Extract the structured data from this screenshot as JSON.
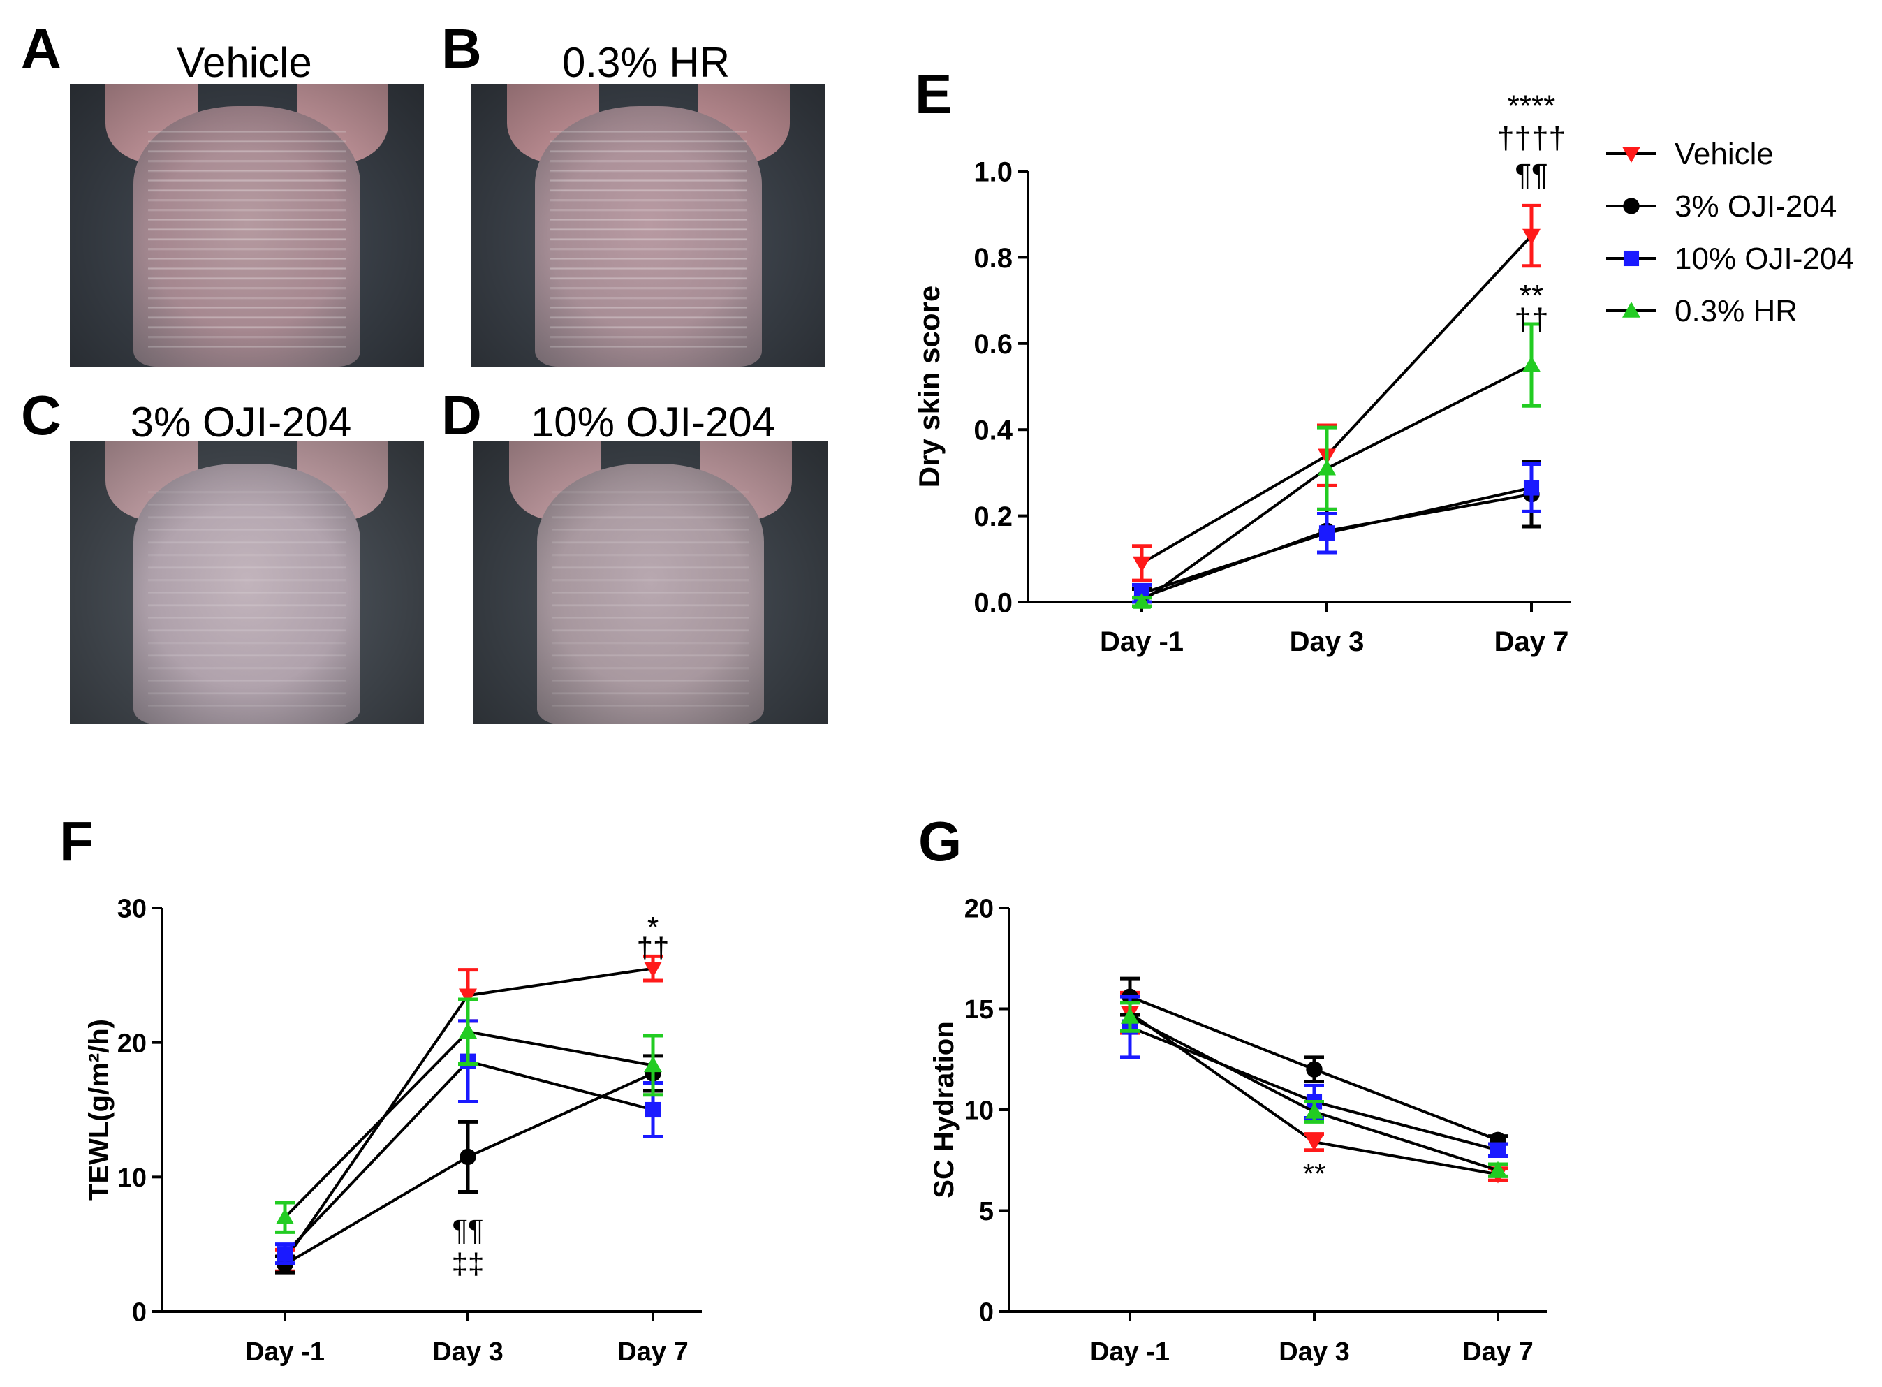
{
  "panels": {
    "A": {
      "letter": "A",
      "title": "Vehicle"
    },
    "B": {
      "letter": "B",
      "title": "0.3% HR"
    },
    "C": {
      "letter": "C",
      "title": "3% OJI-204"
    },
    "D": {
      "letter": "D",
      "title": "10% OJI-204"
    },
    "E": {
      "letter": "E"
    },
    "F": {
      "letter": "F"
    },
    "G": {
      "letter": "G"
    }
  },
  "colors": {
    "vehicle": "#ff1a1a",
    "oji3": "#000000",
    "oji10": "#1a1aff",
    "hr": "#22cc22"
  },
  "chart_data": [
    {
      "id": "E",
      "type": "line",
      "title": "",
      "xlabel": "",
      "ylabel": "Dry skin score",
      "categories": [
        "Day -1",
        "Day 3",
        "Day 7"
      ],
      "ylim": [
        0,
        1.0
      ],
      "yticks": [
        "0.0",
        "0.2",
        "0.4",
        "0.6",
        "0.8",
        "1.0"
      ],
      "legend_position": "top-right",
      "series": [
        {
          "key": "vehicle",
          "name": "Vehicle",
          "marker": "triangle-down",
          "values": [
            0.09,
            0.34,
            0.85
          ],
          "errors": [
            0.04,
            0.07,
            0.07
          ]
        },
        {
          "key": "oji3",
          "name": "3% OJI-204",
          "marker": "circle",
          "values": [
            0.01,
            0.165,
            0.25
          ],
          "errors": [
            0.02,
            0.05,
            0.075
          ]
        },
        {
          "key": "oji10",
          "name": "10% OJI-204",
          "marker": "square",
          "values": [
            0.02,
            0.16,
            0.265
          ],
          "errors": [
            0.02,
            0.045,
            0.055
          ]
        },
        {
          "key": "hr",
          "name": "0.3% HR",
          "marker": "triangle-up",
          "values": [
            0.0,
            0.31,
            0.55
          ],
          "errors": [
            0.01,
            0.095,
            0.095
          ]
        }
      ],
      "annotations": [
        {
          "category": "Day 7",
          "value": 1.15,
          "text": "****"
        },
        {
          "category": "Day 7",
          "value": 1.075,
          "text": "††††"
        },
        {
          "category": "Day 7",
          "value": 0.99,
          "text": "¶¶"
        },
        {
          "category": "Day 7",
          "value": 0.71,
          "text": "**"
        },
        {
          "category": "Day 7",
          "value": 0.655,
          "text": "††"
        }
      ]
    },
    {
      "id": "F",
      "type": "line",
      "title": "",
      "xlabel": "",
      "ylabel": "TEWL(g/m²/h)",
      "categories": [
        "Day -1",
        "Day 3",
        "Day 7"
      ],
      "ylim": [
        0,
        30
      ],
      "yticks": [
        "0",
        "10",
        "20",
        "30"
      ],
      "series": [
        {
          "key": "vehicle",
          "name": "Vehicle",
          "marker": "triangle-down",
          "values": [
            3.8,
            23.5,
            25.5
          ],
          "errors": [
            0.8,
            1.9,
            0.9
          ]
        },
        {
          "key": "oji3",
          "name": "3% OJI-204",
          "marker": "circle",
          "values": [
            3.5,
            11.5,
            17.7
          ],
          "errors": [
            0.6,
            2.6,
            1.3
          ]
        },
        {
          "key": "oji10",
          "name": "10% OJI-204",
          "marker": "square",
          "values": [
            4.3,
            18.6,
            15.0
          ],
          "errors": [
            0.7,
            3.0,
            2.0
          ]
        },
        {
          "key": "hr",
          "name": "0.3% HR",
          "marker": "triangle-up",
          "values": [
            7.0,
            20.8,
            18.3
          ],
          "errors": [
            1.1,
            2.4,
            2.2
          ]
        }
      ],
      "annotations": [
        {
          "category": "Day 7",
          "value": 28.5,
          "text": "*"
        },
        {
          "category": "Day 7",
          "value": 27.0,
          "text": "††"
        },
        {
          "category": "Day 3",
          "value": 6.0,
          "text": "¶¶"
        },
        {
          "category": "Day 3",
          "value": 3.5,
          "text": "‡‡"
        }
      ]
    },
    {
      "id": "G",
      "type": "line",
      "title": "",
      "xlabel": "",
      "ylabel": "SC Hydration",
      "categories": [
        "Day -1",
        "Day 3",
        "Day 7"
      ],
      "ylim": [
        0,
        20
      ],
      "yticks": [
        "0",
        "5",
        "10",
        "15",
        "20"
      ],
      "series": [
        {
          "key": "vehicle",
          "name": "Vehicle",
          "marker": "triangle-down",
          "values": [
            14.8,
            8.4,
            6.8
          ],
          "errors": [
            1.0,
            0.4,
            0.3
          ]
        },
        {
          "key": "oji3",
          "name": "3% OJI-204",
          "marker": "circle",
          "values": [
            15.6,
            12.0,
            8.5
          ],
          "errors": [
            0.9,
            0.6,
            0.2
          ]
        },
        {
          "key": "oji10",
          "name": "10% OJI-204",
          "marker": "square",
          "values": [
            14.1,
            10.4,
            8.0
          ],
          "errors": [
            1.5,
            0.8,
            0.3
          ]
        },
        {
          "key": "hr",
          "name": "0.3% HR",
          "marker": "triangle-up",
          "values": [
            14.6,
            9.9,
            7.0
          ],
          "errors": [
            0.7,
            0.5,
            0.3
          ]
        }
      ],
      "annotations": [
        {
          "category": "Day 3",
          "value": 6.8,
          "text": "**"
        }
      ]
    }
  ]
}
